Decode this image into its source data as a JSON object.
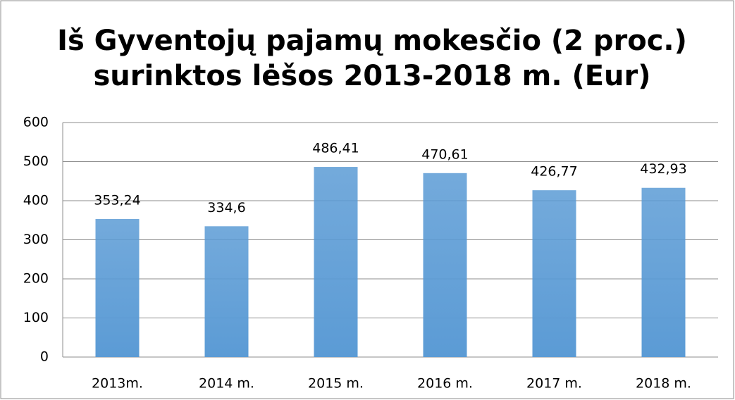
{
  "chart_data": {
    "type": "bar",
    "title": [
      "Iš Gyventojų pajamų mokesčio (2 proc.)",
      "surinktos lėšos 2013-2018 m. (Eur)"
    ],
    "categories": [
      "2013m.",
      "2014 m.",
      "2015 m.",
      "2016 m.",
      "2017 m.",
      "2018 m."
    ],
    "values": [
      353.24,
      334.6,
      486.41,
      470.61,
      426.77,
      432.93
    ],
    "value_labels": [
      "353,24",
      "334,6",
      "486,41",
      "470,61",
      "426,77",
      "432,93"
    ],
    "color": "#5b9bd5",
    "ylim": [
      0,
      600
    ],
    "yticks": [
      0,
      100,
      200,
      300,
      400,
      500,
      600
    ],
    "grid": true
  }
}
